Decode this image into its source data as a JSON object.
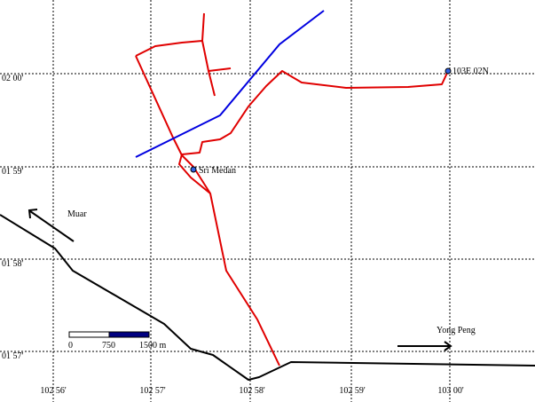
{
  "grid_labels": {
    "latitude": [
      "02 00'",
      "01 59'",
      "01 58'",
      "01 57'"
    ],
    "longitude": [
      "102 56'",
      "102 57'",
      "102 58'",
      "102 59'",
      "103 00'"
    ]
  },
  "places": {
    "marker": "103E 02N",
    "town": "Sri Medan",
    "west": "Muar",
    "east": "Yong Peng"
  },
  "scale_bar": {
    "labels": [
      "0",
      "750",
      "1500 m"
    ]
  }
}
